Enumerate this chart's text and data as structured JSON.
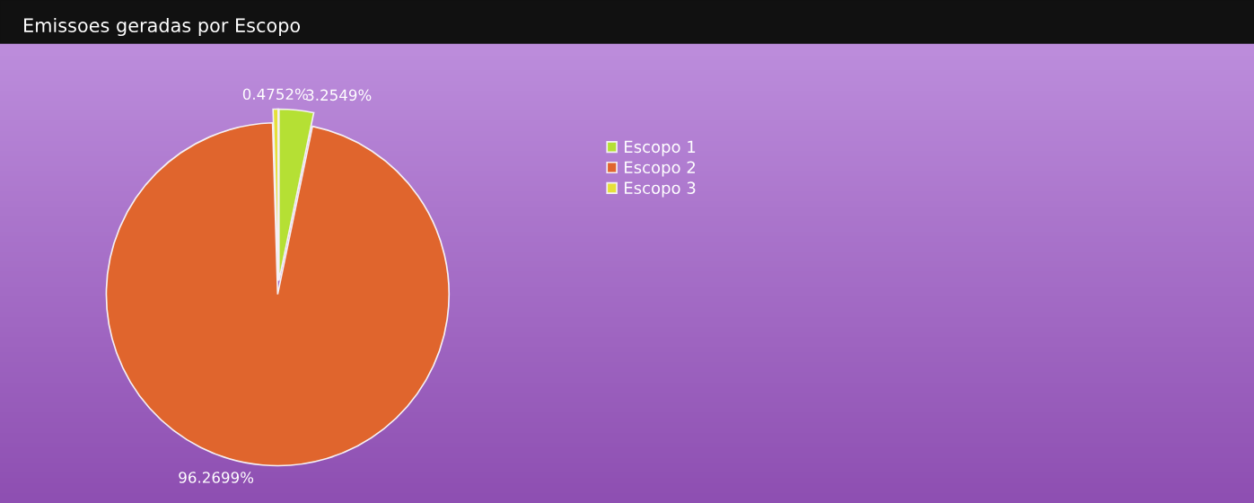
{
  "chart_data": {
    "type": "pie",
    "title": "Emissoes geradas por Escopo",
    "categories": [
      "Escopo 1",
      "Escopo 2",
      "Escopo 3"
    ],
    "values": [
      3.2549,
      96.2699,
      0.4752
    ],
    "value_labels": [
      "3.2549%",
      "96.2699%",
      "0.4752%"
    ],
    "colors": [
      "#b5e034",
      "#e0652d",
      "#e5e039"
    ],
    "legend": "top"
  }
}
